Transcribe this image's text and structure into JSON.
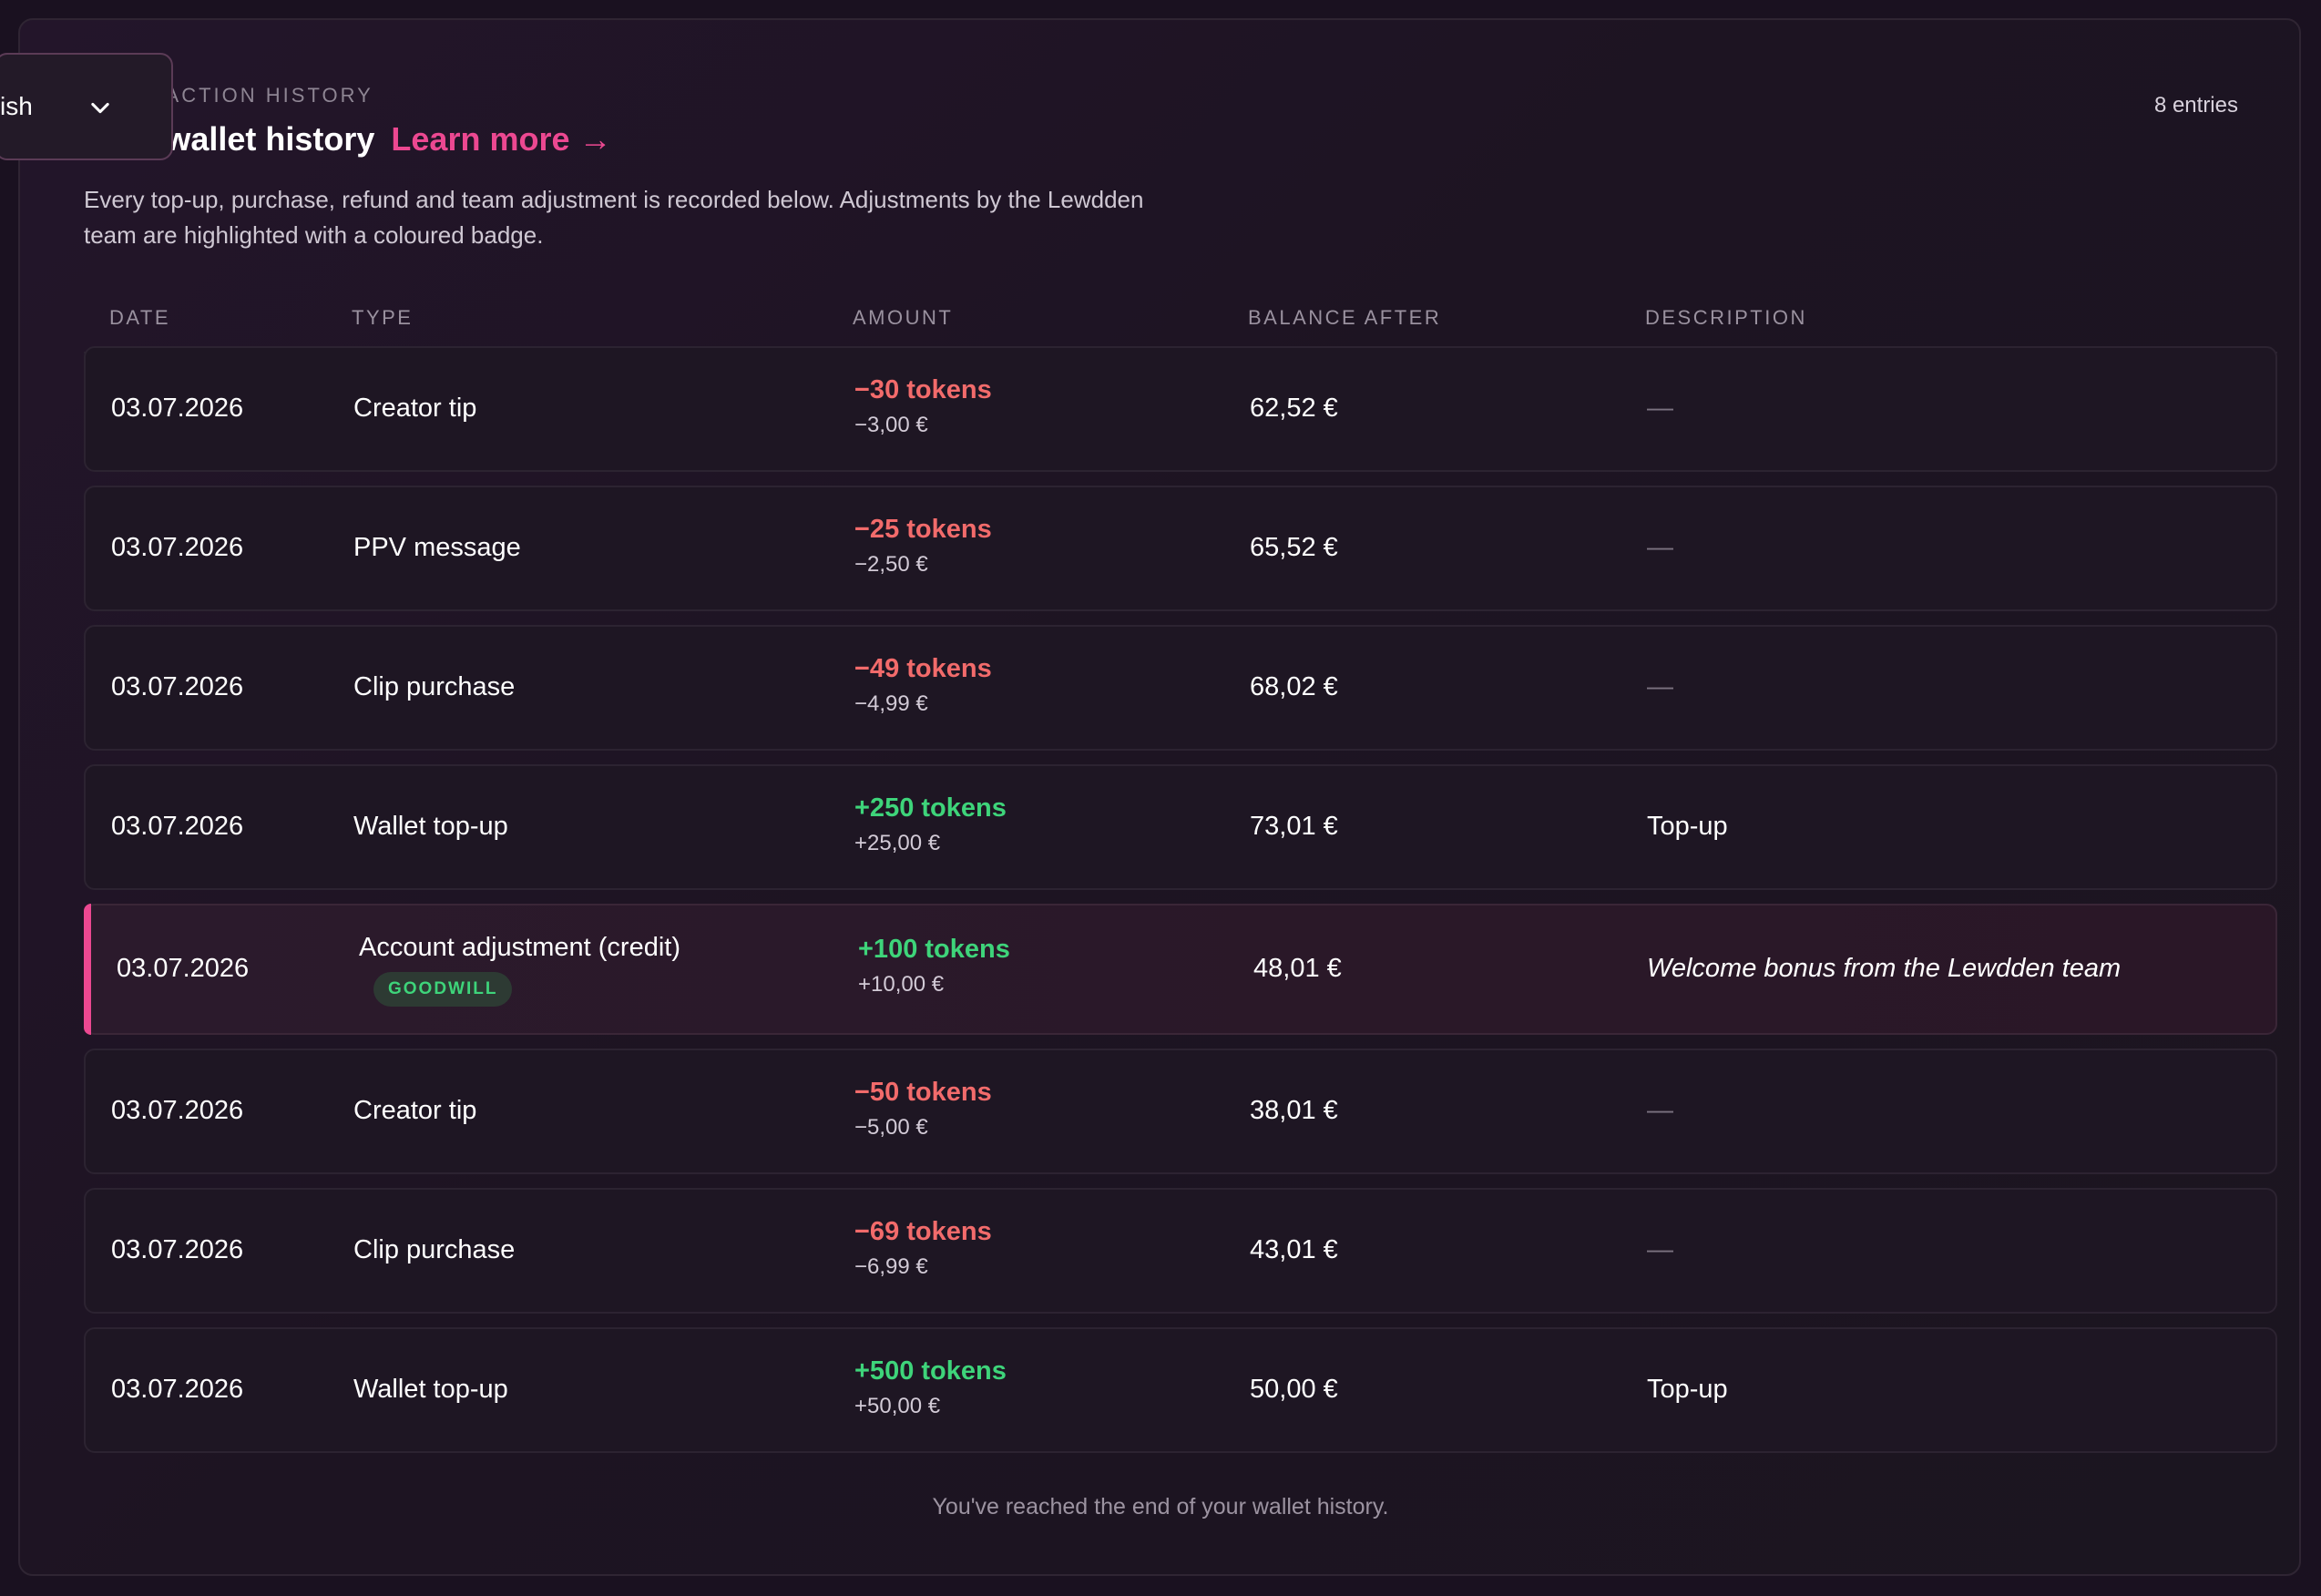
{
  "header": {
    "eyebrow": "TRANSACTION HISTORY",
    "title": "Your wallet history",
    "learn_more": "Learn more →",
    "subtitle": "Every top-up, purchase, refund and team adjustment is recorded below. Adjustments by the Lewdden team are highlighted with a coloured badge.",
    "entries": "8 entries"
  },
  "language_select": {
    "value": "English",
    "icon": "chevron-down-icon"
  },
  "table": {
    "columns": [
      "DATE",
      "TYPE",
      "AMOUNT",
      "BALANCE AFTER",
      "DESCRIPTION"
    ],
    "rows": [
      {
        "date": "03.07.2026",
        "type": "Creator tip",
        "tokens": "−30 tokens",
        "eur": "−3,00 €",
        "balance": "62,52 €",
        "description": "—"
      },
      {
        "date": "03.07.2026",
        "type": "PPV message",
        "tokens": "−25 tokens",
        "eur": "−2,50 €",
        "balance": "65,52 €",
        "description": "—"
      },
      {
        "date": "03.07.2026",
        "type": "Clip purchase",
        "tokens": "−49 tokens",
        "eur": "−4,99 €",
        "balance": "68,02 €",
        "description": "—"
      },
      {
        "date": "03.07.2026",
        "type": "Wallet top-up",
        "tokens": "+250 tokens",
        "eur": "+25,00 €",
        "balance": "73,01 €",
        "description": "Top-up"
      },
      {
        "date": "03.07.2026",
        "type": "Account adjustment (credit)",
        "badge": "GOODWILL",
        "tokens": "+100 tokens",
        "eur": "+10,00 €",
        "balance": "48,01 €",
        "description": "Welcome bonus from the Lewdden team"
      },
      {
        "date": "03.07.2026",
        "type": "Creator tip",
        "tokens": "−50 tokens",
        "eur": "−5,00 €",
        "balance": "38,01 €",
        "description": "—"
      },
      {
        "date": "03.07.2026",
        "type": "Clip purchase",
        "tokens": "−69 tokens",
        "eur": "−6,99 €",
        "balance": "43,01 €",
        "description": "—"
      },
      {
        "date": "03.07.2026",
        "type": "Wallet top-up",
        "tokens": "+500 tokens",
        "eur": "+50,00 €",
        "balance": "50,00 €",
        "description": "Top-up"
      }
    ]
  },
  "footer": "You've reached the end of your wallet history.",
  "colors": {
    "accent": "#ec4891",
    "negative": "#f26b6b",
    "positive": "#3ed47a"
  }
}
